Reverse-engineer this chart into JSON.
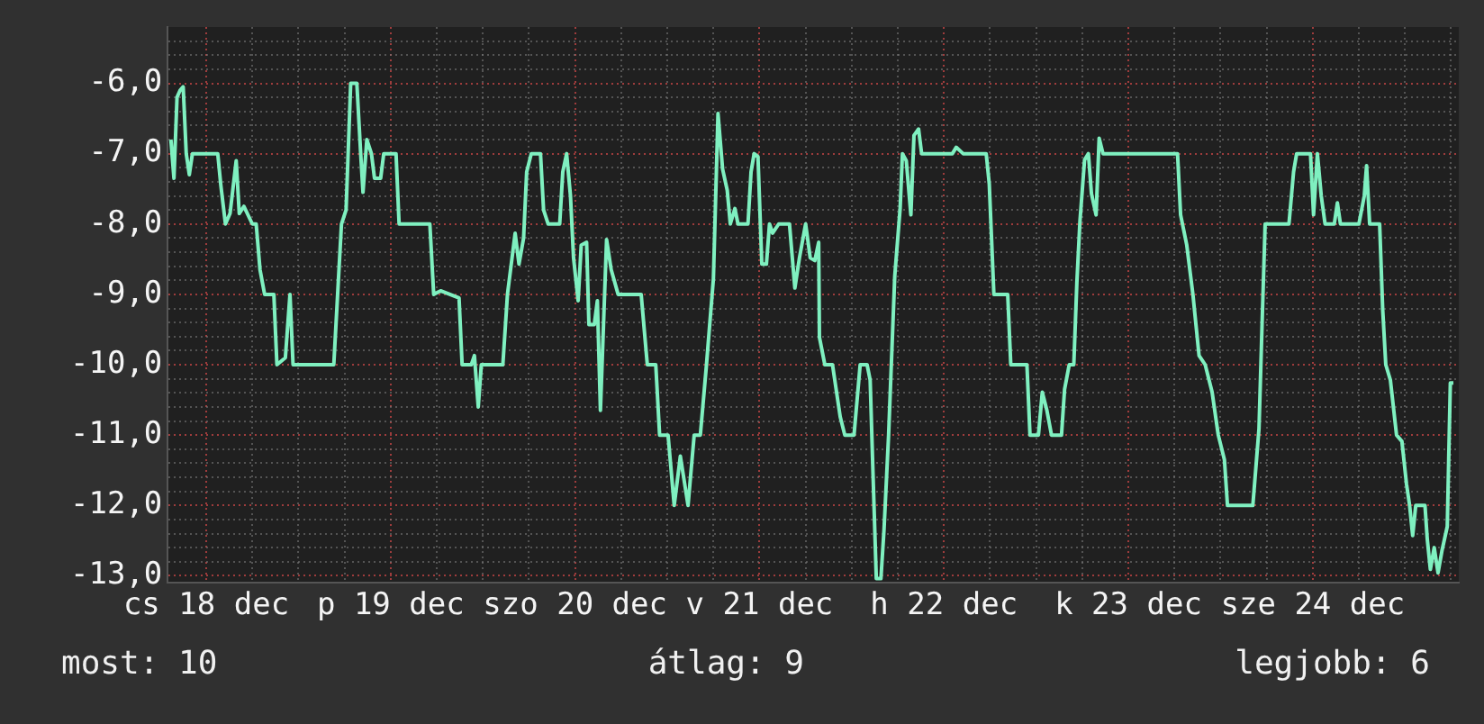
{
  "chart_data": {
    "type": "line",
    "grid": true,
    "legend": false,
    "xlim": [
      "--12-18T07:00",
      "--12-25T07:00"
    ],
    "xticks": [
      {
        "value": "--12-18T12:00",
        "label": "cs 18 dec"
      },
      {
        "value": "--12-18T18:00",
        "label": null
      },
      {
        "value": "--12-19T00:00",
        "label": null
      },
      {
        "value": "--12-19T06:00",
        "label": null
      },
      {
        "value": "--12-19T12:00",
        "label": "p 19 dec"
      },
      {
        "value": "--12-19T18:00",
        "label": null
      },
      {
        "value": "--12-20T00:00",
        "label": null
      },
      {
        "value": "--12-20T06:00",
        "label": null
      },
      {
        "value": "--12-20T12:00",
        "label": "szo 20 dec"
      },
      {
        "value": "--12-20T18:00",
        "label": null
      },
      {
        "value": "--12-21T00:00",
        "label": null
      },
      {
        "value": "--12-21T06:00",
        "label": null
      },
      {
        "value": "--12-21T12:00",
        "label": "v 21 dec"
      },
      {
        "value": "--12-21T18:00",
        "label": null
      },
      {
        "value": "--12-22T00:00",
        "label": null
      },
      {
        "value": "--12-22T06:00",
        "label": null
      },
      {
        "value": "--12-22T12:00",
        "label": "h 22 dec"
      },
      {
        "value": "--12-22T18:00",
        "label": null
      },
      {
        "value": "--12-23T00:00",
        "label": null
      },
      {
        "value": "--12-23T06:00",
        "label": null
      },
      {
        "value": "--12-23T12:00",
        "label": "k 23 dec"
      },
      {
        "value": "--12-23T18:00",
        "label": null
      },
      {
        "value": "--12-24T00:00",
        "label": null
      },
      {
        "value": "--12-24T06:00",
        "label": null
      },
      {
        "value": "--12-24T12:00",
        "label": "sze 24 dec"
      },
      {
        "value": "--12-24T18:00",
        "label": null
      },
      {
        "value": "--12-25T00:00",
        "label": null
      },
      {
        "value": "--12-25T06:00",
        "label": null
      }
    ],
    "ylim": [
      -13.1,
      -5.2
    ],
    "yticks": [
      {
        "value": -13,
        "label": "-13,0"
      },
      {
        "value": -12.8,
        "label": null
      },
      {
        "value": -12.6,
        "label": null
      },
      {
        "value": -12.4,
        "label": null
      },
      {
        "value": -12.2,
        "label": null
      },
      {
        "value": -12,
        "label": "-12,0"
      },
      {
        "value": -11.8,
        "label": null
      },
      {
        "value": -11.6,
        "label": null
      },
      {
        "value": -11.4,
        "label": null
      },
      {
        "value": -11.2,
        "label": null
      },
      {
        "value": -11,
        "label": "-11,0"
      },
      {
        "value": -10.8,
        "label": null
      },
      {
        "value": -10.6,
        "label": null
      },
      {
        "value": -10.4,
        "label": null
      },
      {
        "value": -10.2,
        "label": null
      },
      {
        "value": -10,
        "label": "-10,0"
      },
      {
        "value": -9.8,
        "label": null
      },
      {
        "value": -9.6,
        "label": null
      },
      {
        "value": -9.4,
        "label": null
      },
      {
        "value": -9.2,
        "label": null
      },
      {
        "value": -9,
        "label": "-9,0"
      },
      {
        "value": -8.8,
        "label": null
      },
      {
        "value": -8.6,
        "label": null
      },
      {
        "value": -8.4,
        "label": null
      },
      {
        "value": -8.2,
        "label": null
      },
      {
        "value": -8,
        "label": "-8,0"
      },
      {
        "value": -7.8,
        "label": null
      },
      {
        "value": -7.6,
        "label": null
      },
      {
        "value": -7.4,
        "label": null
      },
      {
        "value": -7.2,
        "label": null
      },
      {
        "value": -7,
        "label": "-7,0"
      },
      {
        "value": -6.8,
        "label": null
      },
      {
        "value": -6.6,
        "label": null
      },
      {
        "value": -6.4,
        "label": null
      },
      {
        "value": -6.2,
        "label": null
      },
      {
        "value": -6,
        "label": "-6,0"
      },
      {
        "value": -5.8,
        "label": null
      },
      {
        "value": -5.6,
        "label": null
      },
      {
        "value": -5.4,
        "label": null
      }
    ],
    "annotations": [
      "most: 10",
      "átlag: 9",
      "legjobb: 6"
    ],
    "series": [
      {
        "color": "#7ff0c0",
        "x": [
          "--12-18T07:24",
          "--12-18T07:48",
          "--12-18T08:12",
          "--12-18T08:36",
          "--12-18T09:00",
          "--12-18T09:24",
          "--12-18T09:48",
          "--12-18T10:12",
          "--12-18T13:30",
          "--12-18T13:54",
          "--12-18T14:30",
          "--12-18T15:06",
          "--12-18T15:54",
          "--12-18T16:18",
          "--12-18T16:54",
          "--12-18T18:00",
          "--12-18T18:30",
          "--12-18T19:00",
          "--12-18T19:36",
          "--12-18T20:48",
          "--12-18T21:12",
          "--12-18T22:18",
          "--12-18T22:54",
          "--12-18T23:18",
          "--12-19T04:36",
          "--12-19T05:06",
          "--12-19T05:36",
          "--12-19T06:12",
          "--12-19T06:48",
          "--12-19T07:36",
          "--12-19T08:06",
          "--12-19T08:24",
          "--12-19T08:54",
          "--12-19T09:30",
          "--12-19T09:54",
          "--12-19T10:42",
          "--12-19T11:06",
          "--12-19T12:42",
          "--12-19T13:06",
          "--12-19T17:06",
          "--12-19T17:36",
          "--12-19T18:30",
          "--12-19T20:54",
          "--12-19T21:18",
          "--12-19T22:30",
          "--12-19T22:54",
          "--12-19T23:24",
          "--12-19T23:48",
          "--12-20T02:36",
          "--12-20T03:12",
          "--12-20T04:12",
          "--12-20T04:42",
          "--12-20T05:18",
          "--12-20T05:42",
          "--12-20T06:18",
          "--12-20T07:30",
          "--12-20T07:54",
          "--12-20T08:30",
          "--12-20T10:00",
          "--12-20T10:24",
          "--12-20T10:54",
          "--12-20T11:24",
          "--12-20T11:48",
          "--12-20T12:24",
          "--12-20T12:48",
          "--12-20T13:30",
          "--12-20T13:48",
          "--12-20T14:30",
          "--12-20T14:54",
          "--12-20T15:18",
          "--12-20T15:42",
          "--12-20T16:06",
          "--12-20T16:42",
          "--12-20T17:36",
          "--12-20T20:36",
          "--12-20T21:24",
          "--12-20T22:30",
          "--12-20T23:00",
          "--12-21T00:06",
          "--12-21T00:54",
          "--12-21T01:42",
          "--12-21T02:42",
          "--12-21T03:30",
          "--12-21T04:18",
          "--12-21T05:06",
          "--12-21T06:00",
          "--12-21T06:36",
          "--12-21T07:12",
          "--12-21T07:48",
          "--12-21T08:12",
          "--12-21T08:48",
          "--12-21T09:12",
          "--12-21T10:30",
          "--12-21T10:54",
          "--12-21T11:18",
          "--12-21T11:48",
          "--12-21T12:18",
          "--12-21T12:54",
          "--12-21T13:18",
          "--12-21T13:42",
          "--12-21T14:30",
          "--12-21T15:54",
          "--12-21T16:36",
          "--12-21T17:12",
          "--12-21T18:00",
          "--12-21T18:36",
          "--12-21T19:12",
          "--12-21T19:42",
          "--12-21T19:48",
          "--12-21T20:30",
          "--12-21T21:30",
          "--12-21T22:30",
          "--12-21T23:06",
          "--12-22T00:18",
          "--12-22T01:06",
          "--12-22T02:00",
          "--12-22T02:24",
          "--12-22T02:48",
          "--12-22T03:12",
          "--12-22T03:48",
          "--12-22T04:12",
          "--12-22T04:48",
          "--12-22T05:36",
          "--12-22T06:18",
          "--12-22T06:36",
          "--12-22T07:06",
          "--12-22T07:42",
          "--12-22T08:06",
          "--12-22T08:42",
          "--12-22T09:06",
          "--12-22T13:06",
          "--12-22T13:36",
          "--12-22T14:30",
          "--12-22T17:30",
          "--12-22T17:54",
          "--12-22T18:30",
          "--12-22T20:18",
          "--12-22T20:42",
          "--12-22T22:48",
          "--12-22T23:12",
          "--12-23T00:18",
          "--12-23T00:48",
          "--12-23T01:24",
          "--12-23T02:00",
          "--12-23T03:18",
          "--12-23T03:42",
          "--12-23T04:18",
          "--12-23T04:54",
          "--12-23T05:18",
          "--12-23T05:42",
          "--12-23T06:18",
          "--12-23T06:48",
          "--12-23T07:12",
          "--12-23T07:48",
          "--12-23T08:12",
          "--12-23T08:42",
          "--12-23T18:24",
          "--12-23T18:48",
          "--12-23T19:36",
          "--12-23T20:24",
          "--12-23T21:12",
          "--12-23T22:00",
          "--12-23T22:54",
          "--12-23T23:42",
          "--12-24T00:30",
          "--12-24T00:54",
          "--12-24T04:12",
          "--12-24T05:00",
          "--12-24T05:24",
          "--12-24T05:48",
          "--12-24T08:54",
          "--12-24T09:30",
          "--12-24T09:54",
          "--12-24T11:42",
          "--12-24T12:06",
          "--12-24T12:36",
          "--12-24T13:06",
          "--12-24T13:36",
          "--12-24T14:48",
          "--12-24T15:12",
          "--12-24T15:36",
          "--12-24T18:00",
          "--12-24T18:42",
          "--12-24T19:00",
          "--12-24T19:24",
          "--12-24T20:42",
          "--12-24T21:06",
          "--12-24T21:30",
          "--12-24T22:06",
          "--12-24T22:54",
          "--12-24T23:36",
          "--12-25T00:12",
          "--12-25T00:36",
          "--12-25T01:00",
          "--12-25T01:24",
          "--12-25T02:36",
          "--12-25T02:54",
          "--12-25T03:18",
          "--12-25T03:48",
          "--12-25T04:18",
          "--12-25T04:48",
          "--12-25T05:30",
          "--12-25T05:54",
          "--12-25T06:18"
        ],
        "values": [
          -6.8,
          -7.35,
          -6.2,
          -6.1,
          -6.05,
          -7.0,
          -7.3,
          -7.0,
          -7.0,
          -7.45,
          -8.0,
          -7.85,
          -7.1,
          -7.85,
          -7.75,
          -8.0,
          -8.0,
          -8.65,
          -9.0,
          -9.0,
          -10.0,
          -9.9,
          -9.0,
          -10.0,
          -10.0,
          -9.0,
          -8.0,
          -7.8,
          -6.0,
          -6.0,
          -7.0,
          -7.55,
          -6.8,
          -7.0,
          -7.35,
          -7.35,
          -7.0,
          -7.0,
          -8.0,
          -8.0,
          -9.0,
          -8.95,
          -9.05,
          -10.0,
          -10.0,
          -9.87,
          -10.6,
          -10.0,
          -10.0,
          -9.0,
          -8.13,
          -8.57,
          -8.2,
          -7.26,
          -7.0,
          -7.0,
          -7.8,
          -8.0,
          -8.0,
          -7.26,
          -7.0,
          -7.6,
          -8.48,
          -9.09,
          -8.3,
          -8.26,
          -9.43,
          -9.43,
          -9.09,
          -10.65,
          -9.43,
          -8.22,
          -8.65,
          -9.0,
          -9.0,
          -10.0,
          -10.0,
          -11.0,
          -11.0,
          -12.0,
          -11.3,
          -12.0,
          -11.0,
          -11.0,
          -10.0,
          -8.78,
          -6.43,
          -7.22,
          -7.52,
          -8.0,
          -7.78,
          -8.0,
          -8.0,
          -7.26,
          -7.0,
          -7.04,
          -8.57,
          -8.57,
          -8.0,
          -8.13,
          -8.0,
          -8.0,
          -8.91,
          -8.48,
          -8.0,
          -8.48,
          -8.52,
          -8.26,
          -9.61,
          -10.0,
          -10.0,
          -10.74,
          -11.0,
          -11.0,
          -10.0,
          -10.0,
          -10.22,
          -11.65,
          -13.04,
          -13.04,
          -12.35,
          -11.0,
          -8.74,
          -7.78,
          -7.0,
          -7.1,
          -7.87,
          -6.74,
          -6.65,
          -7.0,
          -7.0,
          -6.91,
          -7.0,
          -7.0,
          -7.43,
          -9.0,
          -9.0,
          -10.0,
          -10.0,
          -11.0,
          -11.0,
          -10.39,
          -10.65,
          -11.0,
          -11.0,
          -10.35,
          -10.0,
          -10.0,
          -8.83,
          -7.96,
          -7.09,
          -7.0,
          -7.57,
          -7.87,
          -6.78,
          -7.0,
          -7.0,
          -7.87,
          -8.3,
          -9.0,
          -9.87,
          -10.0,
          -10.39,
          -11.0,
          -11.35,
          -12.0,
          -12.0,
          -10.91,
          -9.43,
          -8.0,
          -8.0,
          -7.26,
          -7.0,
          -7.0,
          -7.87,
          -7.0,
          -7.6,
          -8.0,
          -8.0,
          -7.7,
          -8.0,
          -8.0,
          -7.6,
          -7.17,
          -8.0,
          -8.0,
          -9.22,
          -10.0,
          -10.22,
          -11.0,
          -11.09,
          -11.7,
          -12.0,
          -12.43,
          -12.0,
          -12.0,
          -12.48,
          -12.91,
          -12.6,
          -12.96,
          -12.65,
          -12.3,
          -10.26,
          -10.26
        ]
      }
    ]
  }
}
